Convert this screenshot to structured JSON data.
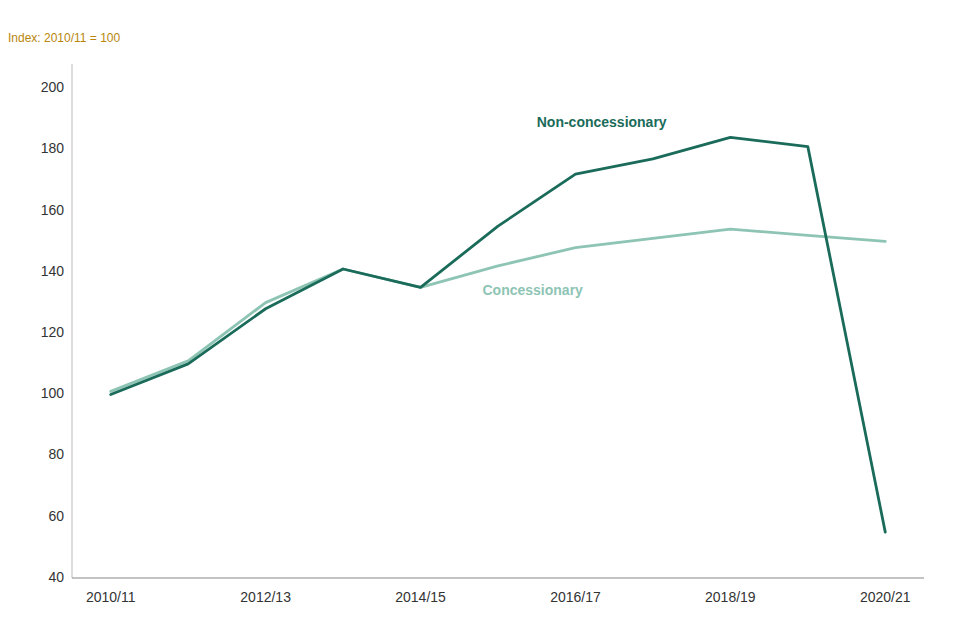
{
  "chart_data": {
    "type": "line",
    "y_label": "Index: 2010/11 = 100",
    "categories": [
      "2010/11",
      null,
      "2012/13",
      null,
      "2014/15",
      null,
      "2016/17",
      null,
      "2018/19",
      null,
      "2020/21"
    ],
    "series": [
      {
        "name": "Non-concessionary",
        "color": "#1a6b5a",
        "values": [
          100,
          110,
          128,
          141,
          135,
          155,
          172,
          177,
          184,
          181,
          55
        ]
      },
      {
        "name": "Concessionary",
        "color": "#8dc4b4",
        "values": [
          101,
          111,
          130,
          141,
          135,
          142,
          148,
          151,
          154,
          152,
          150
        ]
      }
    ],
    "ylim": [
      40,
      208
    ],
    "yticks": [
      40,
      60,
      80,
      100,
      120,
      140,
      160,
      180,
      200
    ],
    "grid": false
  }
}
